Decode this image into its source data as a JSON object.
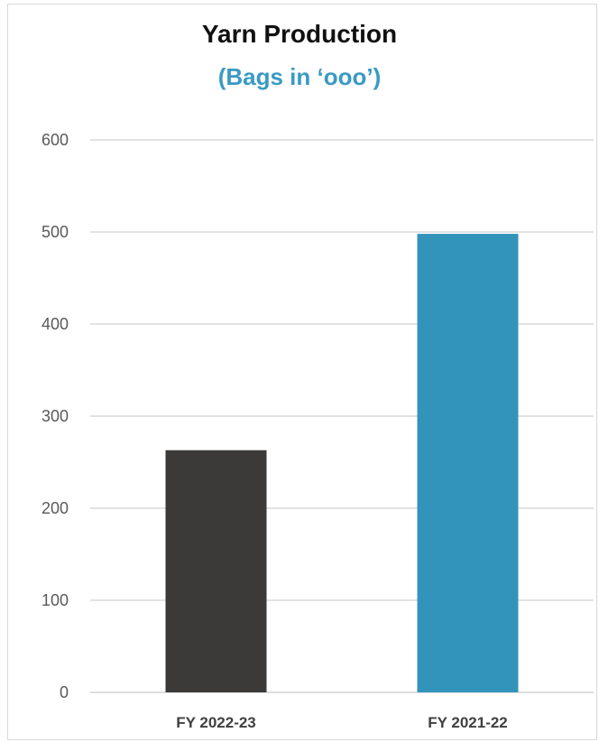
{
  "chart_data": {
    "type": "bar",
    "title": "Yarn Production",
    "subtitle": "(Bags in ‘ooo’)",
    "categories": [
      "FY 2022-23",
      "FY 2021-22"
    ],
    "values": [
      263,
      498
    ],
    "colors": [
      "#3b3a39",
      "#3394bb"
    ],
    "xlabel": "",
    "ylabel": "",
    "ylim": [
      0,
      600
    ],
    "yticks": [
      0,
      100,
      200,
      300,
      400,
      500,
      600
    ],
    "grid": true,
    "legend": "none"
  }
}
